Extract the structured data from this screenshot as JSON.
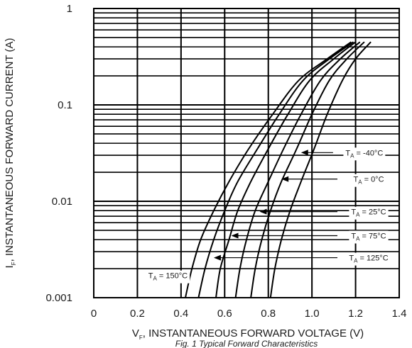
{
  "chart_data": {
    "type": "line",
    "xlabel_main": "V",
    "xlabel_sub": "F",
    "xlabel_rest": ", INSTANTANEOUS FORWARD VOLTAGE (V)",
    "ylabel_main": "I",
    "ylabel_sub": "F",
    "ylabel_rest": ", INSTANTANEOUS FORWARD CURRENT (A)",
    "y_scale": "log",
    "xlim": [
      0,
      1.4
    ],
    "ylim": [
      0.001,
      1
    ],
    "x_ticks": [
      {
        "value": 0,
        "label": "0"
      },
      {
        "value": 0.2,
        "label": "0.2"
      },
      {
        "value": 0.4,
        "label": "0.4"
      },
      {
        "value": 0.6,
        "label": "0.6"
      },
      {
        "value": 0.8,
        "label": "0.8"
      },
      {
        "value": 1.0,
        "label": "1.0"
      },
      {
        "value": 1.2,
        "label": "1.2"
      },
      {
        "value": 1.4,
        "label": "1.4"
      }
    ],
    "y_ticks": [
      {
        "value": 1,
        "label": "1"
      },
      {
        "value": 0.1,
        "label": "0.1"
      },
      {
        "value": 0.01,
        "label": "0.01"
      },
      {
        "value": 0.001,
        "label": "0.001"
      }
    ],
    "grid": true,
    "series": [
      {
        "temp": "-40°C",
        "x": [
          0.81,
          0.83,
          0.86,
          0.9,
          0.95,
          1.01,
          1.07,
          1.14,
          1.2,
          1.27
        ],
        "y": [
          0.001,
          0.002,
          0.004,
          0.008,
          0.016,
          0.035,
          0.08,
          0.18,
          0.3,
          0.45
        ]
      },
      {
        "temp": "0°C",
        "x": [
          0.72,
          0.74,
          0.77,
          0.81,
          0.86,
          0.93,
          1.0,
          1.08,
          1.16,
          1.24
        ],
        "y": [
          0.001,
          0.002,
          0.004,
          0.008,
          0.016,
          0.035,
          0.08,
          0.18,
          0.3,
          0.45
        ]
      },
      {
        "temp": "25°C",
        "x": [
          0.65,
          0.67,
          0.7,
          0.74,
          0.8,
          0.87,
          0.95,
          1.04,
          1.13,
          1.22
        ],
        "y": [
          0.001,
          0.002,
          0.004,
          0.008,
          0.016,
          0.035,
          0.08,
          0.18,
          0.3,
          0.45
        ]
      },
      {
        "temp": "75°C",
        "x": [
          0.56,
          0.58,
          0.62,
          0.66,
          0.72,
          0.8,
          0.89,
          0.99,
          1.1,
          1.2
        ],
        "y": [
          0.001,
          0.002,
          0.004,
          0.008,
          0.016,
          0.035,
          0.08,
          0.18,
          0.3,
          0.45
        ]
      },
      {
        "temp": "125°C",
        "x": [
          0.48,
          0.51,
          0.55,
          0.6,
          0.66,
          0.75,
          0.85,
          0.96,
          1.08,
          1.19
        ],
        "y": [
          0.001,
          0.002,
          0.004,
          0.008,
          0.016,
          0.035,
          0.08,
          0.18,
          0.3,
          0.45
        ]
      },
      {
        "temp": "150°C",
        "x": [
          0.42,
          0.45,
          0.49,
          0.55,
          0.62,
          0.71,
          0.82,
          0.94,
          1.07,
          1.18
        ],
        "y": [
          0.001,
          0.002,
          0.004,
          0.008,
          0.016,
          0.035,
          0.08,
          0.18,
          0.3,
          0.45
        ]
      }
    ],
    "annotations": [
      {
        "prefix": "T",
        "sub": "A",
        "suffix": " = -40°C",
        "text_at": [
          1.24,
          0.032
        ],
        "arrow_to": [
          0.95,
          0.032
        ]
      },
      {
        "prefix": "T",
        "sub": "A",
        "suffix": " = 0°C",
        "text_at": [
          1.26,
          0.017
        ],
        "arrow_to": [
          0.86,
          0.017
        ]
      },
      {
        "prefix": "T",
        "sub": "A",
        "suffix": " = 25°C",
        "text_at": [
          1.26,
          0.0078
        ],
        "arrow_to": [
          0.76,
          0.0078
        ]
      },
      {
        "prefix": "T",
        "sub": "A",
        "suffix": " = 75°C",
        "text_at": [
          1.26,
          0.0044
        ],
        "arrow_to": [
          0.63,
          0.0044
        ]
      },
      {
        "prefix": "T",
        "sub": "A",
        "suffix": " = 125°C",
        "text_at": [
          1.26,
          0.0026
        ],
        "arrow_to": [
          0.55,
          0.0026
        ]
      },
      {
        "prefix": "T",
        "sub": "A",
        "suffix": " = 150°C",
        "text_at": [
          0.25,
          0.0017
        ],
        "arrow_to": null
      }
    ],
    "caption": "Fig. 1 Typical Forward Characteristics"
  }
}
